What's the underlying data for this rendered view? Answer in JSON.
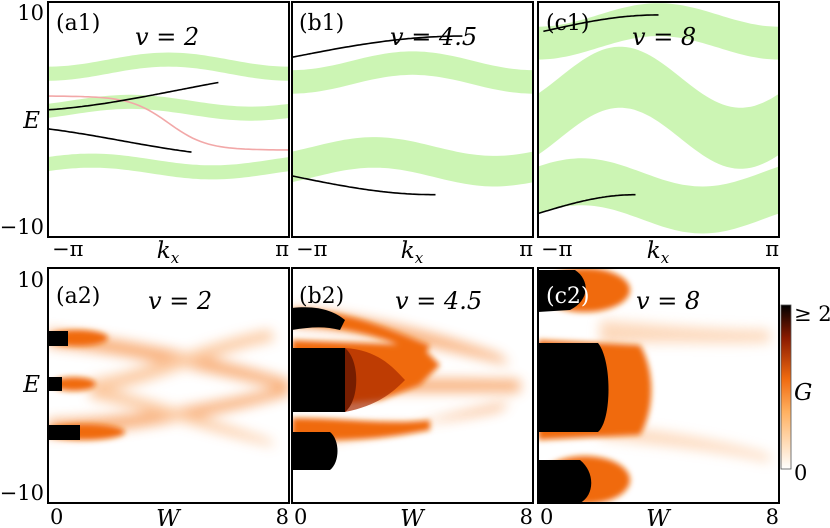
{
  "chart_data": [
    {
      "panel": "(a1)",
      "type": "line",
      "title": "v = 2",
      "xlabel": "k_x",
      "ylabel": "E",
      "xticks": [
        "−π",
        "π"
      ],
      "yticks": [
        "10",
        "−10"
      ],
      "ylim": [
        -10,
        10
      ],
      "bands": [
        {
          "center": 4.5,
          "amp": 0.6,
          "width": 1.2
        },
        {
          "center": 1.0,
          "amp": 0.5,
          "width": 1.2
        },
        {
          "center": -4.0,
          "amp": 0.5,
          "width": 1.2
        }
      ],
      "edge_states_dark": [
        {
          "from": -3.14,
          "to": 1.3,
          "a": 2.5,
          "b": 1.8,
          "phase": -1.2
        },
        {
          "from": -3.14,
          "to": 0.6,
          "a": -1.8,
          "b": -1.4,
          "phase": -0.8
        }
      ],
      "edge_states_light": [
        {
          "from": -3.14,
          "to": 3.14,
          "a": -0.3,
          "b": -2.3
        }
      ]
    },
    {
      "panel": "(b1)",
      "type": "line",
      "title": "v = 4.5",
      "xlabel": "k_x",
      "ylabel": "",
      "xticks": [
        "−π",
        "π"
      ],
      "ylim": [
        -10,
        10
      ],
      "bands": [
        {
          "center": 4.0,
          "amp": 0.8,
          "width": 2.0
        },
        {
          "center": -3.6,
          "amp": 0.8,
          "width": 2.6
        }
      ],
      "edge_states_dark": [
        {
          "from": -3.14,
          "to": 1.3,
          "a": 5.3,
          "b": 1.8
        },
        {
          "from": -3.14,
          "to": 0.6,
          "a": -4.8,
          "b": -1.6
        }
      ]
    },
    {
      "panel": "(c1)",
      "type": "line",
      "title": "v = 8",
      "xlabel": "k_x",
      "ylabel": "",
      "xticks": [
        "−π",
        "π"
      ],
      "ylim": [
        -10,
        10
      ],
      "bands": [
        {
          "center": 7.5,
          "amp": 1.0,
          "width": 2.8
        },
        {
          "center": 1.0,
          "amp": 2.6,
          "width": 5.2
        },
        {
          "center": -6.5,
          "amp": 1.2,
          "width": 4.0
        }
      ],
      "edge_states_dark": [
        {
          "from": -3.0,
          "to": 0.0,
          "a": 7.5,
          "b": 1.4
        },
        {
          "from": -3.14,
          "to": -0.6,
          "a": -8.0,
          "b": 1.6
        }
      ]
    },
    {
      "panel": "(a2)",
      "type": "heatmap",
      "title": "v = 2",
      "xlabel": "W",
      "ylabel": "E",
      "xticks": [
        "0",
        "8"
      ],
      "yticks": [
        "10",
        "−10"
      ],
      "xlim": [
        0,
        8
      ],
      "ylim": [
        -10,
        10
      ],
      "colorbar": {
        "label": "G",
        "max_label": "≥ 2",
        "min_label": "0"
      },
      "levels": [
        {
          "e": 4.5,
          "w_dark": 0.8
        },
        {
          "e": 0.0,
          "w_dark": 0.6
        },
        {
          "e": -4.5,
          "w_dark": 1.0
        }
      ]
    },
    {
      "panel": "(b2)",
      "type": "heatmap",
      "title": "v = 4.5",
      "xlabel": "W",
      "xticks": [
        "0",
        "8"
      ],
      "xlim": [
        0,
        8
      ],
      "ylim": [
        -10,
        10
      ]
    },
    {
      "panel": "(c2)",
      "type": "heatmap",
      "title": "v = 8",
      "xlabel": "W",
      "xticks": [
        "0",
        "8"
      ],
      "xlim": [
        0,
        8
      ],
      "ylim": [
        -10,
        10
      ]
    }
  ]
}
